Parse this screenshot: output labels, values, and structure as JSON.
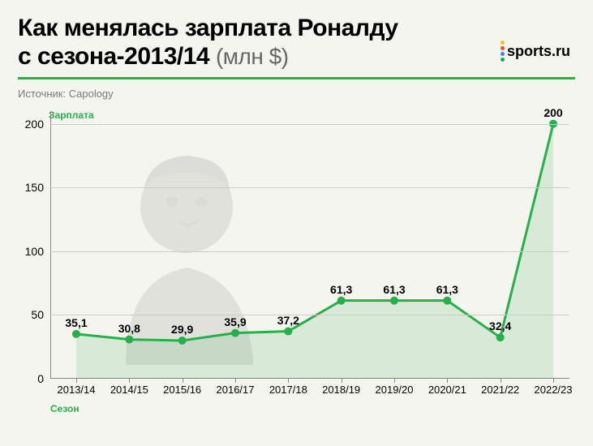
{
  "title": {
    "line1": "Как менялась зарплата Роналду",
    "line2_bold": "с сезона-2013/14",
    "line2_suffix": "(млн $)"
  },
  "logo": {
    "text": "sports.ru",
    "dot_colors": [
      "#f5c518",
      "#e94e3c",
      "#3b82f6",
      "#22a85a"
    ]
  },
  "divider_color": "#27b04a",
  "source": {
    "label": "Источник:",
    "value": "Capology"
  },
  "chart": {
    "type": "line_area",
    "yaxis_title": "Зарплата",
    "yaxis_title_color": "#27b04a",
    "xaxis_title": "Сезон",
    "xaxis_title_color": "#27b04a",
    "ylim": [
      0,
      210
    ],
    "yticks": [
      0,
      50,
      100,
      150,
      200
    ],
    "grid_color": "#cccccc",
    "axis_color": "#888888",
    "line_color": "#27b04a",
    "line_width": 3,
    "area_fill": "#27b04a",
    "area_opacity": 0.15,
    "marker_color": "#27b04a",
    "marker_radius": 5,
    "background_color": "#f5f5f0",
    "categories": [
      "2013/14",
      "2014/15",
      "2015/16",
      "2016/17",
      "2017/18",
      "2018/19",
      "2019/20",
      "2020/21",
      "2021/22",
      "2022/23"
    ],
    "values": [
      35.1,
      30.8,
      29.9,
      35.9,
      37.2,
      61.3,
      61.3,
      61.3,
      32.4,
      200
    ],
    "value_labels": [
      "35,1",
      "30,8",
      "29,9",
      "35,9",
      "37,2",
      "61,3",
      "61,3",
      "61,3",
      "32,4",
      "200"
    ],
    "label_fontsize": 14
  }
}
